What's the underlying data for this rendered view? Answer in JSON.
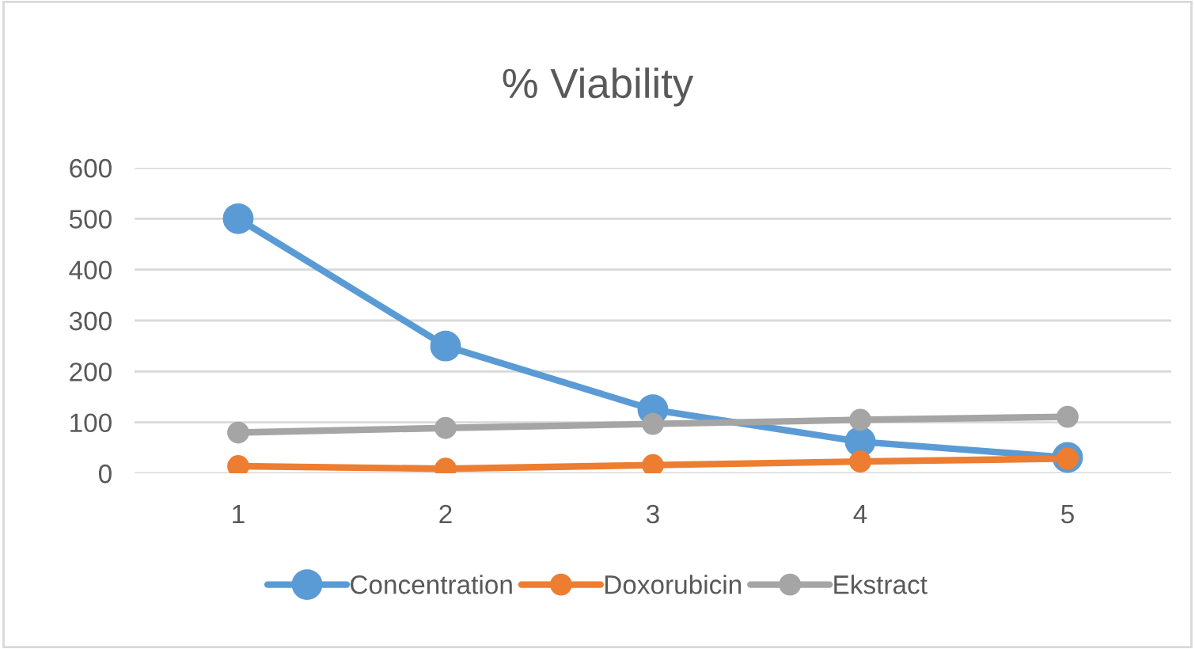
{
  "chart_data": {
    "type": "line",
    "title": "% Viability",
    "categories": [
      "1",
      "2",
      "3",
      "4",
      "5"
    ],
    "series": [
      {
        "name": "Concentration",
        "color": "#5b9bd5",
        "values": [
          500,
          250,
          125,
          62,
          31
        ]
      },
      {
        "name": "Doxorubicin",
        "color": "#ed7d31",
        "values": [
          14,
          9,
          16,
          23,
          29
        ]
      },
      {
        "name": "Ekstract",
        "color": "#a5a5a5",
        "values": [
          80,
          89,
          97,
          105,
          111
        ]
      }
    ],
    "ylim": [
      0,
      600
    ],
    "yticks": [
      0,
      100,
      200,
      300,
      400,
      500,
      600
    ],
    "grid": "y",
    "legend": "bottom",
    "marker": "circle",
    "line_style": "solid"
  }
}
